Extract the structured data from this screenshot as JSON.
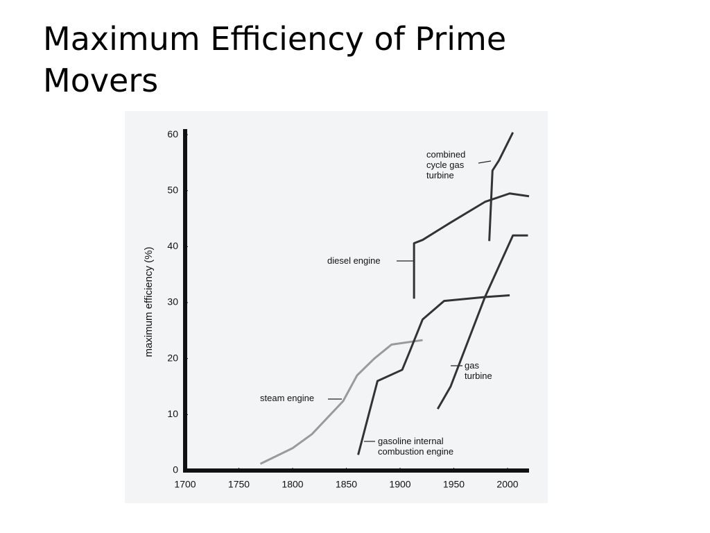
{
  "chart_data": {
    "type": "line",
    "title": "Maximum Efficiency of Prime Movers",
    "y_label": "maximum efficiency (%)",
    "xlim": [
      1700,
      2020
    ],
    "ylim": [
      0,
      61
    ],
    "xticks": [
      1700,
      1750,
      1800,
      1850,
      1900,
      1950,
      2000
    ],
    "yticks": [
      0,
      10,
      20,
      30,
      40,
      50,
      60
    ],
    "grid": false,
    "series": [
      {
        "name": "steam engine",
        "color": "#9a9a9a",
        "x": [
          1770,
          1800,
          1818,
          1847,
          1860,
          1876,
          1892,
          1921
        ],
        "values": [
          1.2,
          4,
          6.5,
          12.4,
          17,
          20,
          22.5,
          23.3
        ]
      },
      {
        "name": "gasoline internal combustion engine",
        "color": "#333333",
        "x": [
          1861,
          1879,
          1902,
          1908,
          1921,
          1941,
          1979,
          2002
        ],
        "values": [
          2.8,
          16,
          18,
          20.8,
          27,
          30.3,
          31,
          31.3
        ]
      },
      {
        "name": "diesel engine",
        "color": "#333333",
        "x": [
          1913,
          1913,
          1921,
          1947,
          1979,
          2002,
          2020
        ],
        "values": [
          30.7,
          40.6,
          41.2,
          44.3,
          48,
          49.5,
          49
        ]
      },
      {
        "name": "gas turbine",
        "color": "#333333",
        "x": [
          1935,
          1947,
          1979,
          2005,
          2019
        ],
        "values": [
          11,
          15,
          31,
          42,
          42
        ]
      },
      {
        "name": "combined cycle gas turbine",
        "color": "#333333",
        "x": [
          1983,
          1986,
          1992,
          2005
        ],
        "values": [
          41,
          53.6,
          55.4,
          60.4
        ]
      }
    ]
  }
}
